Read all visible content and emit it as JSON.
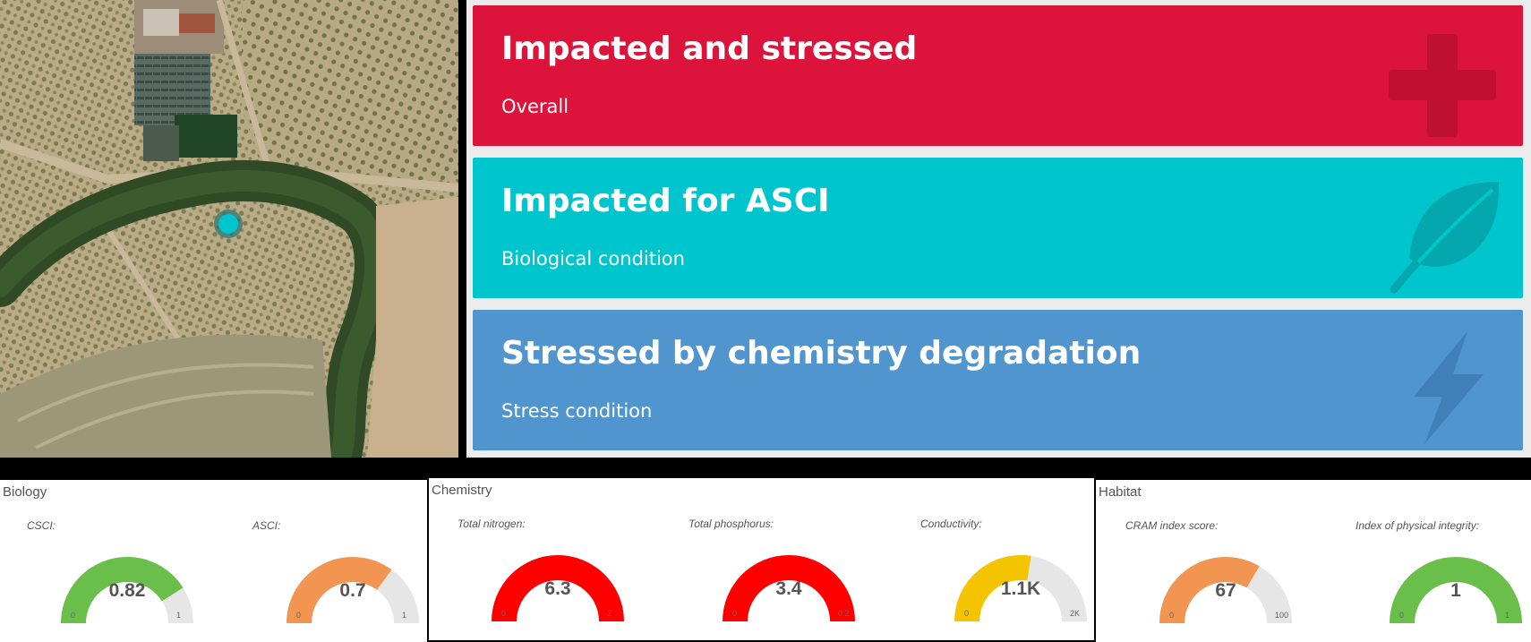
{
  "map": {
    "marker_color": "#00c5cd"
  },
  "cards": [
    {
      "title": "Impacted and stressed",
      "subtitle": "Overall",
      "color": "#dc143c",
      "icon": "plus-icon"
    },
    {
      "title": "Impacted for ASCI",
      "subtitle": "Biological condition",
      "color": "#00c5cd",
      "icon": "leaf-icon"
    },
    {
      "title": "Stressed by chemistry degradation",
      "subtitle": "Stress condition",
      "color": "#5195ce",
      "icon": "lightning-icon"
    }
  ],
  "sections": {
    "biology": {
      "title": "Biology",
      "gauges": [
        {
          "label": "CSCI:",
          "value": 0.82,
          "display": "0.82",
          "min": "0",
          "max": "1",
          "fraction": 0.82,
          "color": "#6abf4b"
        },
        {
          "label": "ASCI:",
          "value": 0.7,
          "display": "0.7",
          "min": "0",
          "max": "1",
          "fraction": 0.7,
          "color": "#f29550"
        }
      ]
    },
    "chemistry": {
      "title": "Chemistry",
      "gauges": [
        {
          "label": "Total nitrogen:",
          "value": 6.3,
          "display": "6.3",
          "min": "0",
          "max": "2",
          "fraction": 1.0,
          "color": "#ff0000"
        },
        {
          "label": "Total phosphorus:",
          "value": 3.4,
          "display": "3.4",
          "min": "0",
          "max": "0.2",
          "fraction": 1.0,
          "color": "#ff0000"
        },
        {
          "label": "Conductivity:",
          "value": 1100,
          "display": "1.1K",
          "min": "0",
          "max": "2K",
          "fraction": 0.55,
          "color": "#f5c400"
        }
      ]
    },
    "habitat": {
      "title": "Habitat",
      "gauges": [
        {
          "label": "CRAM index score:",
          "value": 67,
          "display": "67",
          "min": "0",
          "max": "100",
          "fraction": 0.67,
          "color": "#f29550"
        },
        {
          "label": "Index of physical integrity:",
          "value": 1,
          "display": "1",
          "min": "0",
          "max": "1",
          "fraction": 1.0,
          "color": "#6abf4b"
        }
      ]
    }
  }
}
